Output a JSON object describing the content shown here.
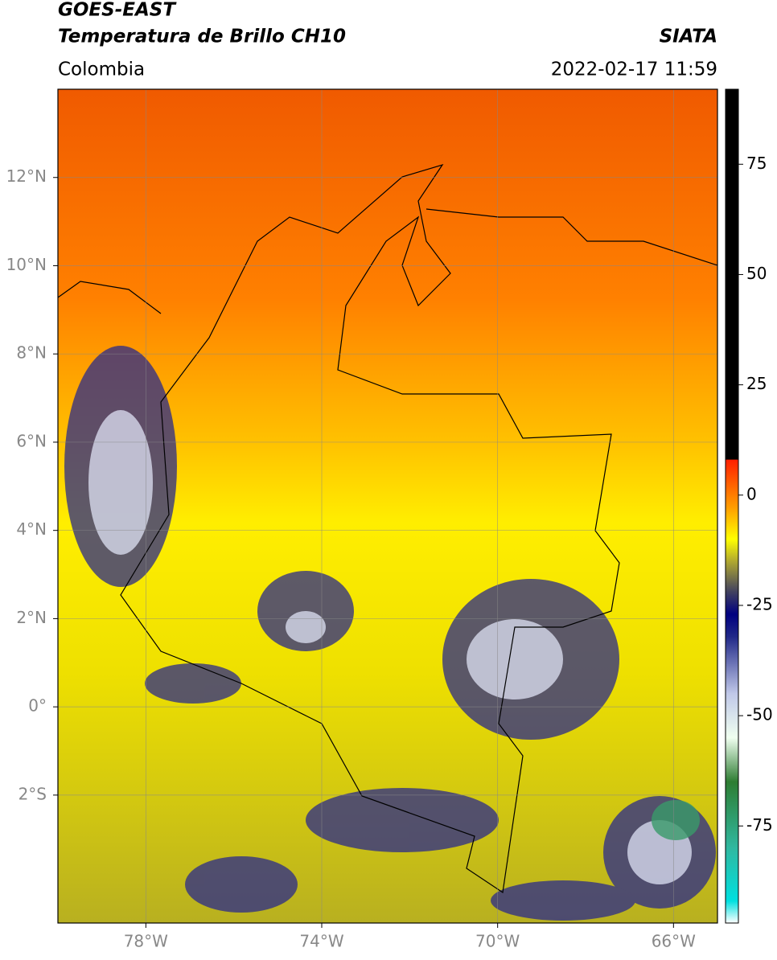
{
  "header": {
    "title": "GOES-EAST",
    "subtitle": "Temperatura de Brillo CH10",
    "source": "SIATA",
    "region": "Colombia",
    "datetime": "2022-02-17 11:59"
  },
  "map": {
    "xlim": [
      -80,
      -65
    ],
    "ylim": [
      -4.9,
      14
    ],
    "xticks": [
      {
        "value": -78,
        "label": "78°W"
      },
      {
        "value": -74,
        "label": "74°W"
      },
      {
        "value": -70,
        "label": "70°W"
      },
      {
        "value": -66,
        "label": "66°W"
      }
    ],
    "yticks": [
      {
        "value": 12,
        "label": "12°N"
      },
      {
        "value": 10,
        "label": "10°N"
      },
      {
        "value": 8,
        "label": "8°N"
      },
      {
        "value": 6,
        "label": "6°N"
      },
      {
        "value": 4,
        "label": "4°N"
      },
      {
        "value": 2,
        "label": "2°N"
      },
      {
        "value": 0,
        "label": "0°"
      },
      {
        "value": -2,
        "label": "2°S"
      }
    ],
    "grid": true
  },
  "colorbar": {
    "lim": [
      -97,
      92
    ],
    "ticks": [
      75,
      50,
      25,
      0,
      -25,
      -50,
      -75
    ],
    "stops": [
      {
        "value": -97,
        "color": "#ffffff"
      },
      {
        "value": -92,
        "color": "#00e0e0"
      },
      {
        "value": -80,
        "color": "#30b8a0"
      },
      {
        "value": -65,
        "color": "#2e7d32"
      },
      {
        "value": -55,
        "color": "#f0fff0"
      },
      {
        "value": -45,
        "color": "#c0c8e8"
      },
      {
        "value": -32,
        "color": "#202888"
      },
      {
        "value": -27,
        "color": "#000080"
      },
      {
        "value": -22,
        "color": "#404060"
      },
      {
        "value": -15,
        "color": "#b0a830"
      },
      {
        "value": -10,
        "color": "#ffff00"
      },
      {
        "value": -3,
        "color": "#ffa000"
      },
      {
        "value": 8,
        "color": "#ff2000"
      },
      {
        "value": 8.1,
        "color": "#000000"
      },
      {
        "value": 92,
        "color": "#000000"
      }
    ]
  }
}
